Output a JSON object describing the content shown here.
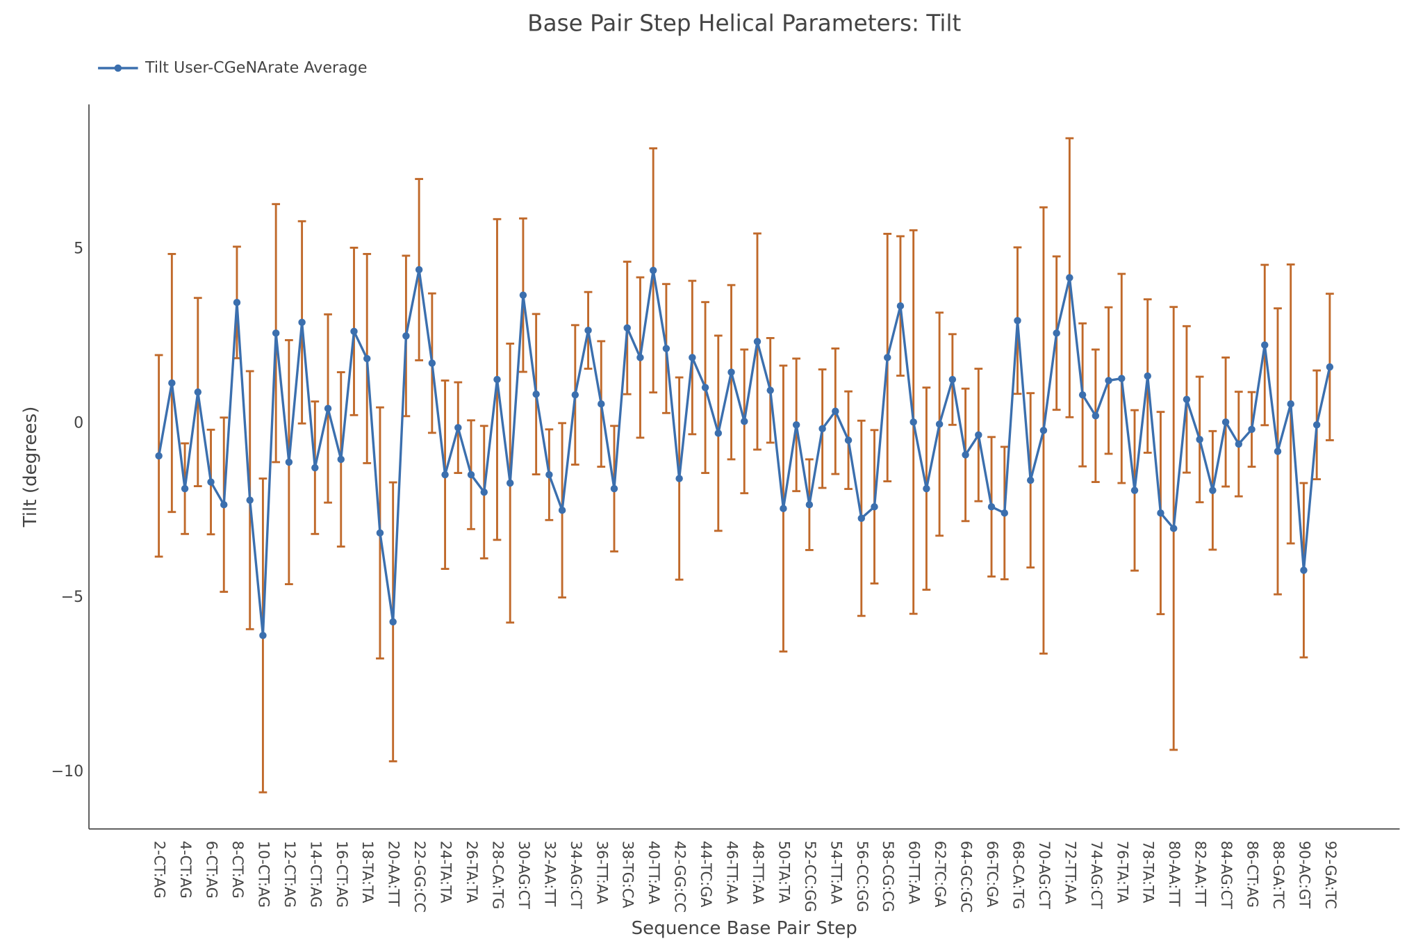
{
  "chart_data": {
    "type": "line",
    "title": "Base Pair Step Helical Parameters: Tilt",
    "x_label": "Sequence Base Pair Step",
    "y_label": "Tilt (degrees)",
    "categories": [
      "2-CT:AG",
      null,
      "4-CT:AG",
      null,
      "6-CT:AG",
      null,
      "8-CT:AG",
      null,
      "10-CT:AG",
      null,
      "12-CT:AG",
      null,
      "14-CT:AG",
      null,
      "16-CT:AG",
      null,
      "18-TA:TA",
      null,
      "20-AA:TT",
      null,
      "22-GG:CC",
      null,
      "24-TA:TA",
      null,
      "26-TA:TA",
      null,
      "28-CA:TG",
      null,
      "30-AG:CT",
      null,
      "32-AA:TT",
      null,
      "34-AG:CT",
      null,
      "36-TT:AA",
      null,
      "38-TG:CA",
      null,
      "40-TT:AA",
      null,
      "42-GG:CC",
      null,
      "44-TC:GA",
      null,
      "46-TT:AA",
      null,
      "48-TT:AA",
      null,
      "50-TA:TA",
      null,
      "52-CC:GG",
      null,
      "54-TT:AA",
      null,
      "56-CC:GG",
      null,
      "58-CG:CG",
      null,
      "60-TT:AA",
      null,
      "62-TC:GA",
      null,
      "64-GC:GC",
      null,
      "66-TC:GA",
      null,
      "68-CA:TG",
      null,
      "70-AG:CT",
      null,
      "72-TT:AA",
      null,
      "74-AG:CT",
      null,
      "76-TA:TA",
      null,
      "78-TA:TA",
      null,
      "80-AA:TT",
      null,
      "82-AA:TT",
      null,
      "84-AG:CT",
      null,
      "86-CT:AG",
      null,
      "88-GA:TC",
      null,
      "90-AC:GT",
      null,
      "92-GA:TC"
    ],
    "series": [
      {
        "name": "Tilt User-CGeNArate Average",
        "color": "#3b6fae",
        "error_color": "#c0692a",
        "values": [
          -0.94,
          1.15,
          -1.88,
          0.89,
          -1.69,
          -2.34,
          3.46,
          -2.21,
          -6.09,
          2.58,
          -1.12,
          2.89,
          -1.28,
          0.42,
          -1.04,
          2.63,
          1.85,
          -3.15,
          -5.7,
          2.5,
          4.4,
          1.72,
          -1.48,
          -0.13,
          -1.48,
          -1.98,
          1.25,
          -1.72,
          3.67,
          0.83,
          -1.48,
          -2.5,
          0.81,
          2.66,
          0.55,
          -1.88,
          2.73,
          1.88,
          4.38,
          2.14,
          -1.59,
          1.88,
          1.02,
          -0.29,
          1.46,
          0.05,
          2.34,
          0.94,
          -2.45,
          -0.05,
          -2.34,
          -0.16,
          0.34,
          -0.49,
          -2.73,
          -2.4,
          1.88,
          3.36,
          0.03,
          -1.88,
          -0.03,
          1.25,
          -0.91,
          -0.34,
          -2.4,
          -2.58,
          2.94,
          -1.64,
          -0.21,
          2.58,
          4.17,
          0.81,
          0.21,
          1.22,
          1.28,
          -1.93,
          1.35,
          -2.58,
          -3.02,
          0.68,
          -0.47,
          -1.93,
          0.03,
          -0.6,
          -0.18,
          2.24,
          -0.81,
          0.55,
          -4.22,
          -0.05,
          1.61
        ],
        "errors": [
          2.89,
          3.7,
          1.3,
          2.7,
          1.5,
          2.5,
          1.6,
          3.7,
          4.5,
          3.7,
          3.5,
          2.9,
          1.9,
          2.7,
          2.5,
          2.4,
          3.0,
          3.6,
          4.0,
          2.3,
          2.6,
          2.0,
          2.7,
          1.3,
          1.56,
          1.9,
          4.6,
          4.0,
          2.2,
          2.3,
          1.3,
          2.5,
          2.0,
          1.1,
          1.8,
          1.8,
          1.9,
          2.3,
          3.5,
          1.85,
          2.9,
          2.2,
          2.45,
          2.8,
          2.5,
          2.06,
          3.1,
          1.5,
          4.1,
          1.9,
          1.3,
          1.7,
          1.8,
          1.4,
          2.8,
          2.2,
          3.55,
          2.0,
          5.5,
          2.9,
          3.2,
          1.3,
          1.9,
          1.9,
          2.0,
          1.9,
          2.1,
          2.5,
          6.4,
          2.2,
          4.0,
          2.05,
          1.9,
          2.1,
          3.0,
          2.3,
          2.2,
          2.9,
          6.35,
          2.1,
          1.8,
          1.7,
          1.85,
          1.5,
          1.07,
          2.3,
          4.1,
          4.0,
          2.5,
          1.56,
          2.1
        ]
      }
    ],
    "ylim": [
      -11.64,
      9.14
    ],
    "yticks": [
      {
        "value": -10,
        "label": "−10"
      },
      {
        "value": -5,
        "label": "−5"
      },
      0,
      5
    ],
    "grid": false,
    "legend": "top-left"
  }
}
